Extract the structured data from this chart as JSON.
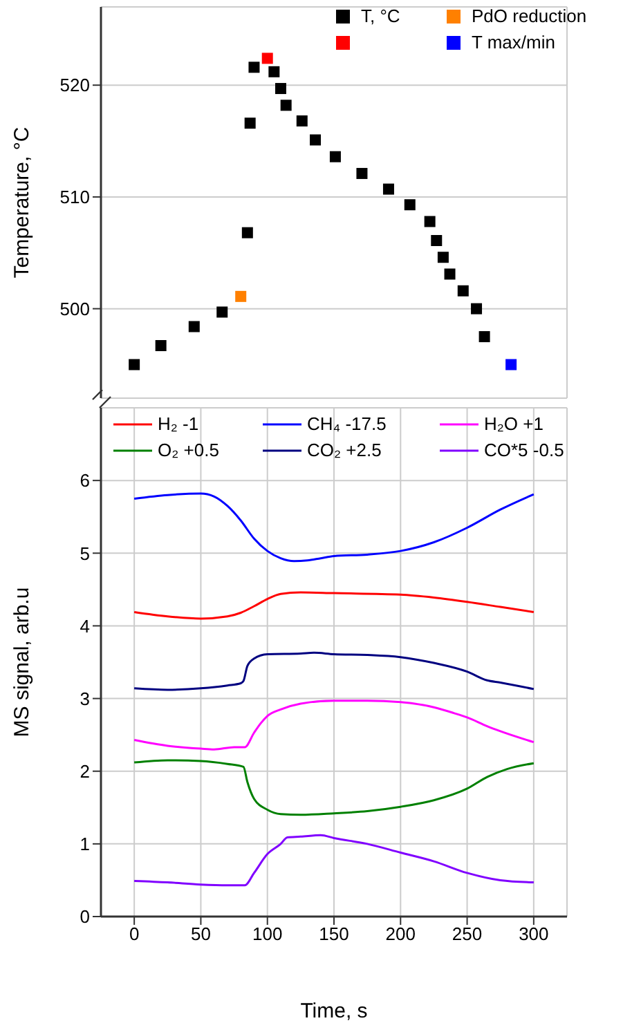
{
  "chart_data": [
    {
      "type": "scatter",
      "ylabel": "Temperature, °C",
      "xlim": [
        -25,
        325
      ],
      "xticks": [
        0,
        50,
        100,
        150,
        200,
        250,
        300
      ],
      "ylim": [
        492,
        527
      ],
      "yticks": [
        500,
        510,
        520
      ],
      "grid": true,
      "legend": "top right",
      "marker": "square",
      "tick_labels": "y",
      "series": [
        {
          "name": "T, °C",
          "color": "#000000",
          "x": [
            0,
            20,
            45,
            66,
            85,
            87,
            90,
            105,
            110,
            114,
            126,
            136,
            151,
            171,
            191,
            207,
            222,
            227,
            232,
            237,
            247,
            257,
            263
          ],
          "values": [
            495.0,
            496.7,
            498.4,
            499.7,
            506.8,
            516.6,
            521.6,
            521.2,
            519.7,
            518.2,
            516.8,
            515.1,
            513.6,
            512.1,
            510.7,
            509.3,
            507.8,
            506.1,
            504.6,
            503.1,
            501.6,
            500.0,
            497.5
          ]
        },
        {
          "name": "PdO reduction",
          "color": "#ff8000",
          "x": [
            80
          ],
          "values": [
            501.1
          ]
        },
        {
          "color": "#ff0000",
          "x": [
            100
          ],
          "values": [
            522.4
          ]
        },
        {
          "name": "T max/min",
          "color": "#0000ff",
          "x": [
            283
          ],
          "values": [
            495.0
          ]
        }
      ]
    },
    {
      "type": "line",
      "xlabel": "Time, s",
      "ylabel": "MS signal, arb.u",
      "xlim": [
        -25,
        325
      ],
      "xticks": [
        0,
        50,
        100,
        150,
        200,
        250,
        300
      ],
      "ylim": [
        0,
        7
      ],
      "yticks": [
        0,
        1,
        2,
        3,
        4,
        5,
        6
      ],
      "grid": true,
      "legend": "top",
      "marker": "none",
      "line_style": "solid",
      "series": [
        {
          "name": "H₂ -1",
          "color": "#ff0000",
          "x": [
            0,
            25,
            50,
            70,
            80,
            90,
            100,
            110,
            125,
            150,
            200,
            225,
            250,
            275,
            300
          ],
          "values": [
            4.19,
            4.13,
            4.1,
            4.13,
            4.18,
            4.27,
            4.37,
            4.44,
            4.46,
            4.45,
            4.43,
            4.39,
            4.33,
            4.26,
            4.19
          ]
        },
        {
          "name": "CH₄ -17.5",
          "color": "#0000ff",
          "x": [
            0,
            25,
            50,
            60,
            70,
            80,
            90,
            100,
            110,
            120,
            130,
            140,
            150,
            175,
            200,
            225,
            250,
            275,
            300
          ],
          "values": [
            5.75,
            5.8,
            5.82,
            5.78,
            5.65,
            5.45,
            5.2,
            5.03,
            4.93,
            4.89,
            4.9,
            4.93,
            4.96,
            4.98,
            5.03,
            5.15,
            5.35,
            5.6,
            5.81
          ]
        },
        {
          "name": "H₂O +1",
          "color": "#ff00ff",
          "x": [
            0,
            25,
            50,
            60,
            75,
            83,
            90,
            95,
            100,
            110,
            125,
            150,
            175,
            200,
            225,
            240,
            250,
            265,
            275,
            300
          ],
          "values": [
            2.43,
            2.35,
            2.31,
            2.3,
            2.33,
            2.33,
            2.53,
            2.66,
            2.76,
            2.85,
            2.93,
            2.97,
            2.97,
            2.95,
            2.88,
            2.8,
            2.74,
            2.62,
            2.55,
            2.4
          ]
        },
        {
          "name": "O₂ +0.5",
          "color": "#008000",
          "x": [
            0,
            25,
            50,
            70,
            82,
            85,
            90,
            100,
            110,
            125,
            150,
            175,
            200,
            225,
            250,
            265,
            280,
            300
          ],
          "values": [
            2.12,
            2.15,
            2.14,
            2.1,
            2.06,
            1.85,
            1.62,
            1.47,
            1.41,
            1.4,
            1.42,
            1.45,
            1.51,
            1.6,
            1.76,
            1.92,
            2.03,
            2.11
          ]
        },
        {
          "name": "CO₂ +2.5",
          "color": "#000080",
          "x": [
            0,
            25,
            50,
            70,
            80,
            82,
            85,
            90,
            100,
            125,
            135,
            150,
            175,
            200,
            225,
            250,
            265,
            275,
            300
          ],
          "values": [
            3.14,
            3.12,
            3.14,
            3.18,
            3.21,
            3.24,
            3.45,
            3.55,
            3.61,
            3.62,
            3.63,
            3.61,
            3.6,
            3.57,
            3.49,
            3.37,
            3.25,
            3.22,
            3.13
          ]
        },
        {
          "name": "CO*5 -0.5",
          "color": "#8000ff",
          "x": [
            0,
            25,
            50,
            70,
            83,
            90,
            100,
            110,
            115,
            125,
            140,
            150,
            175,
            200,
            225,
            250,
            275,
            300
          ],
          "values": [
            0.49,
            0.47,
            0.44,
            0.43,
            0.43,
            0.6,
            0.86,
            1.0,
            1.09,
            1.1,
            1.12,
            1.08,
            1.0,
            0.88,
            0.76,
            0.6,
            0.5,
            0.47
          ]
        }
      ]
    }
  ]
}
